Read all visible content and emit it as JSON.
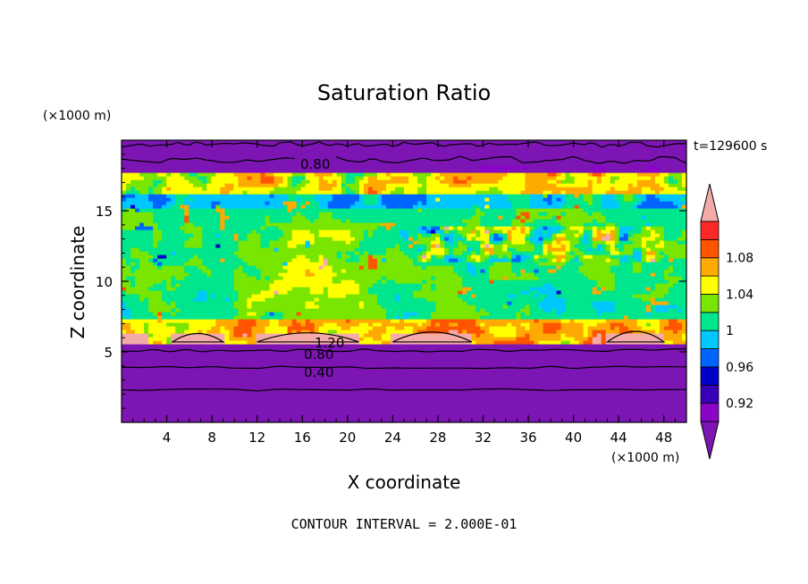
{
  "chart_data": {
    "type": "heatmap",
    "title": "Saturation Ratio",
    "xlabel": "X coordinate",
    "ylabel": "Z coordinate",
    "x_unit": "(×1000 m)",
    "y_unit": "(×1000 m)",
    "time_label": "t=129600 s",
    "footer": "CONTOUR INTERVAL = 2.000E-01",
    "xlim": [
      0,
      50
    ],
    "ylim": [
      0,
      20
    ],
    "x_ticks": [
      "4",
      "8",
      "12",
      "16",
      "20",
      "24",
      "28",
      "32",
      "36",
      "40",
      "44",
      "48"
    ],
    "y_ticks": [
      "5",
      "10",
      "15"
    ],
    "colorbar": {
      "levels": [
        0.9,
        0.92,
        0.94,
        0.96,
        0.98,
        1.0,
        1.02,
        1.04,
        1.06,
        1.08,
        1.1
      ],
      "labels": [
        "0.92",
        "0.96",
        "1",
        "1.04",
        "1.08"
      ],
      "colors": [
        "#8a05c8",
        "#3a00b8",
        "#0000c8",
        "#0064ff",
        "#00c8ff",
        "#00e68c",
        "#78e600",
        "#ffff00",
        "#ffaa00",
        "#ff5500",
        "#ff2828"
      ],
      "over_color": "#f5aaaa",
      "under_color": "#7d14b4"
    },
    "contour_labels": [
      "0.80",
      "1.20",
      "0.80",
      "0.40"
    ],
    "layers": [
      {
        "z_range": [
          0,
          5.5
        ],
        "description": "dry, below 0.9"
      },
      {
        "z_range": [
          5.5,
          7.5
        ],
        "description": "near 1 to above 1.1"
      },
      {
        "z_range": [
          7.5,
          17.5
        ],
        "description": "mostly 0.98 to 1.06, patches up to 1.1"
      },
      {
        "z_range": [
          17.5,
          20
        ],
        "description": "dry, below 0.9"
      }
    ]
  }
}
